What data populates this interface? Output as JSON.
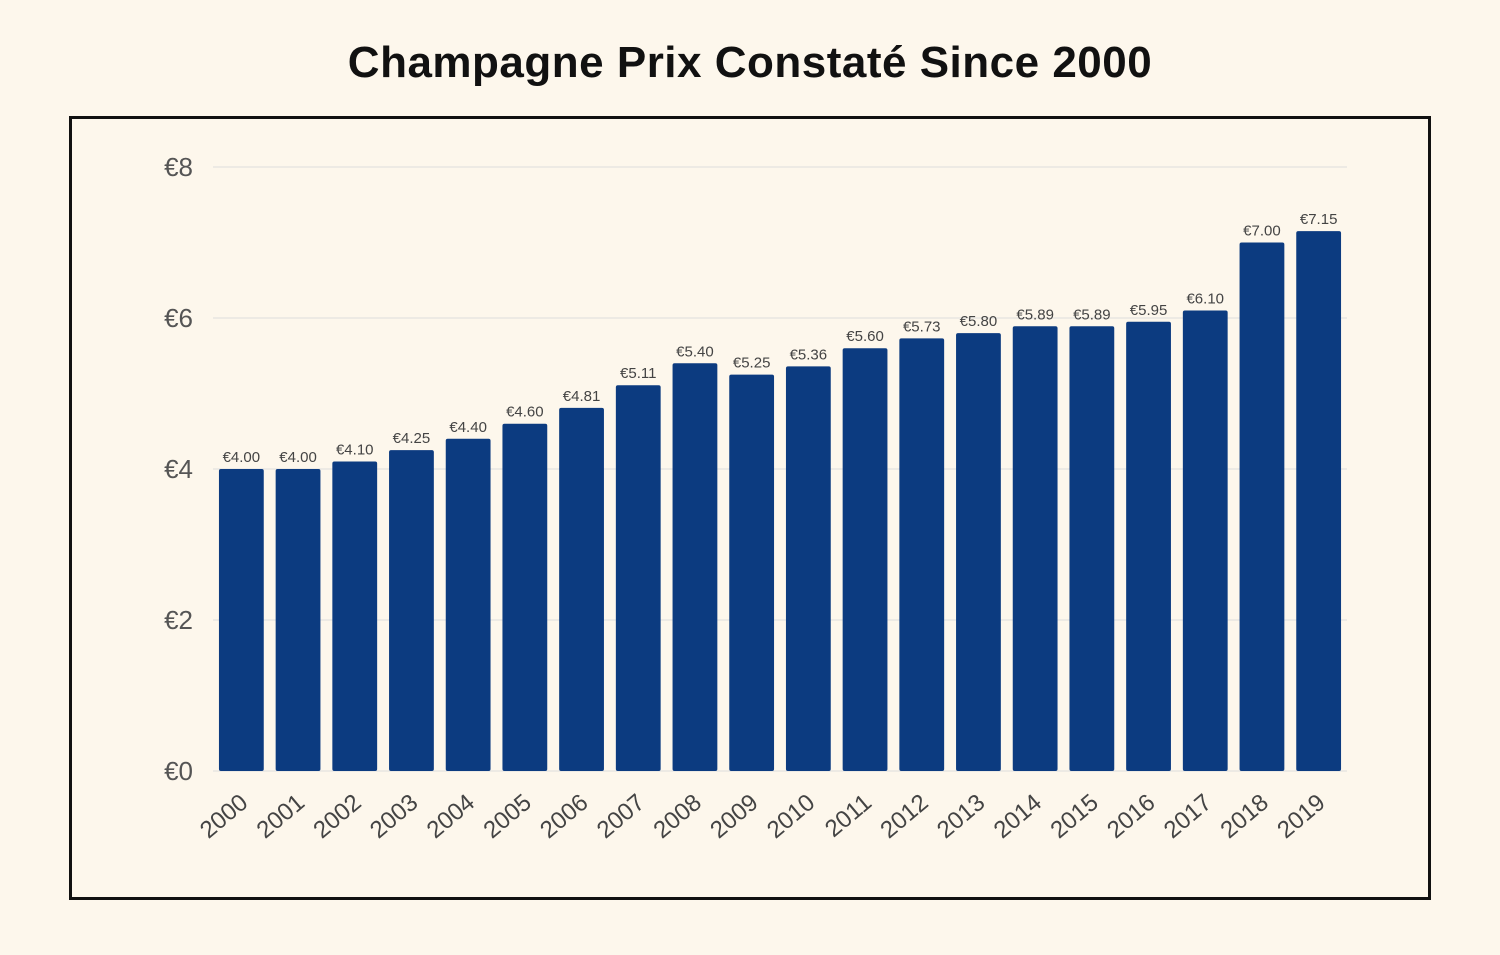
{
  "chart_data": {
    "type": "bar",
    "title": "Champagne Prix Constaté Since 2000",
    "xlabel": "",
    "ylabel": "",
    "categories": [
      "2000",
      "2001",
      "2002",
      "2003",
      "2004",
      "2005",
      "2006",
      "2007",
      "2008",
      "2009",
      "2010",
      "2011",
      "2012",
      "2013",
      "2014",
      "2015",
      "2016",
      "2017",
      "2018",
      "2019"
    ],
    "values": [
      4.0,
      4.0,
      4.1,
      4.25,
      4.4,
      4.6,
      4.81,
      5.11,
      5.4,
      5.25,
      5.36,
      5.6,
      5.73,
      5.8,
      5.89,
      5.89,
      5.95,
      6.1,
      7.0,
      7.15
    ],
    "data_labels": [
      "€4.00",
      "€4.00",
      "€4.10",
      "€4.25",
      "€4.40",
      "€4.60",
      "€4.81",
      "€5.11",
      "€5.40",
      "€5.25",
      "€5.36",
      "€5.60",
      "€5.73",
      "€5.80",
      "€5.89",
      "€5.89",
      "€5.95",
      "€6.10",
      "€7.00",
      "€7.15"
    ],
    "y_ticks": [
      0,
      2,
      4,
      6,
      8
    ],
    "y_tick_labels": [
      "€0",
      "€2",
      "€4",
      "€6",
      "€8"
    ],
    "ylim": [
      0,
      8
    ],
    "grid": true,
    "legend": "none",
    "colors": {
      "bar": "#0c3b80",
      "grid": "#dddddd",
      "background": "#fdf7ec",
      "frame": "#111111"
    }
  }
}
